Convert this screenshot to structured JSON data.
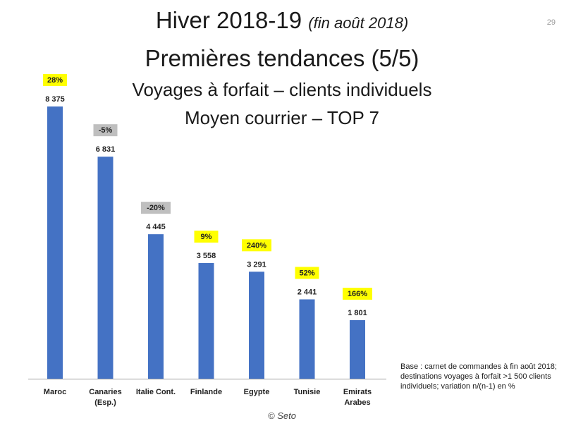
{
  "header": {
    "title_main": "Hiver 2018-19",
    "title_note": "(fin août 2018)",
    "subtitle": "Premières tendances (5/5)",
    "line3": "Voyages à forfait – clients individuels",
    "line4": "Moyen courrier – TOP 7",
    "page_number": "29"
  },
  "base_note": "Base : carnet de commandes à fin août 2018; destinations voyages à forfait >1 500 clients individuels; variation n/(n-1) en %",
  "credit": "© Seto",
  "colors": {
    "bar": "#4472C4",
    "badge_positive": "#FFFF00",
    "badge_negative": "#BFBFBF",
    "axis": "#9E9E9E"
  },
  "chart_data": {
    "type": "bar",
    "categories": [
      "Maroc",
      "Canaries (Esp.)",
      "Italie Cont.",
      "Finlande",
      "Egypte",
      "Tunisie",
      "Emirats Arabes"
    ],
    "category_lines": [
      [
        "Maroc"
      ],
      [
        "Canaries",
        "(Esp.)"
      ],
      [
        "Italie Cont."
      ],
      [
        "Finlande"
      ],
      [
        "Egypte"
      ],
      [
        "Tunisie"
      ],
      [
        "Emirats",
        "Arabes"
      ]
    ],
    "values": [
      8375,
      6831,
      4445,
      3558,
      3291,
      2441,
      1801
    ],
    "value_labels": [
      "8 375",
      "6 831",
      "4 445",
      "3 558",
      "3 291",
      "2 441",
      "1 801"
    ],
    "variation": [
      28,
      -5,
      -20,
      9,
      240,
      52,
      166
    ],
    "variation_labels": [
      "28%",
      "-5%",
      "-20%",
      "9%",
      "240%",
      "52%",
      "166%"
    ],
    "ylim": [
      0,
      8375
    ],
    "grid": false,
    "legend": "none"
  }
}
